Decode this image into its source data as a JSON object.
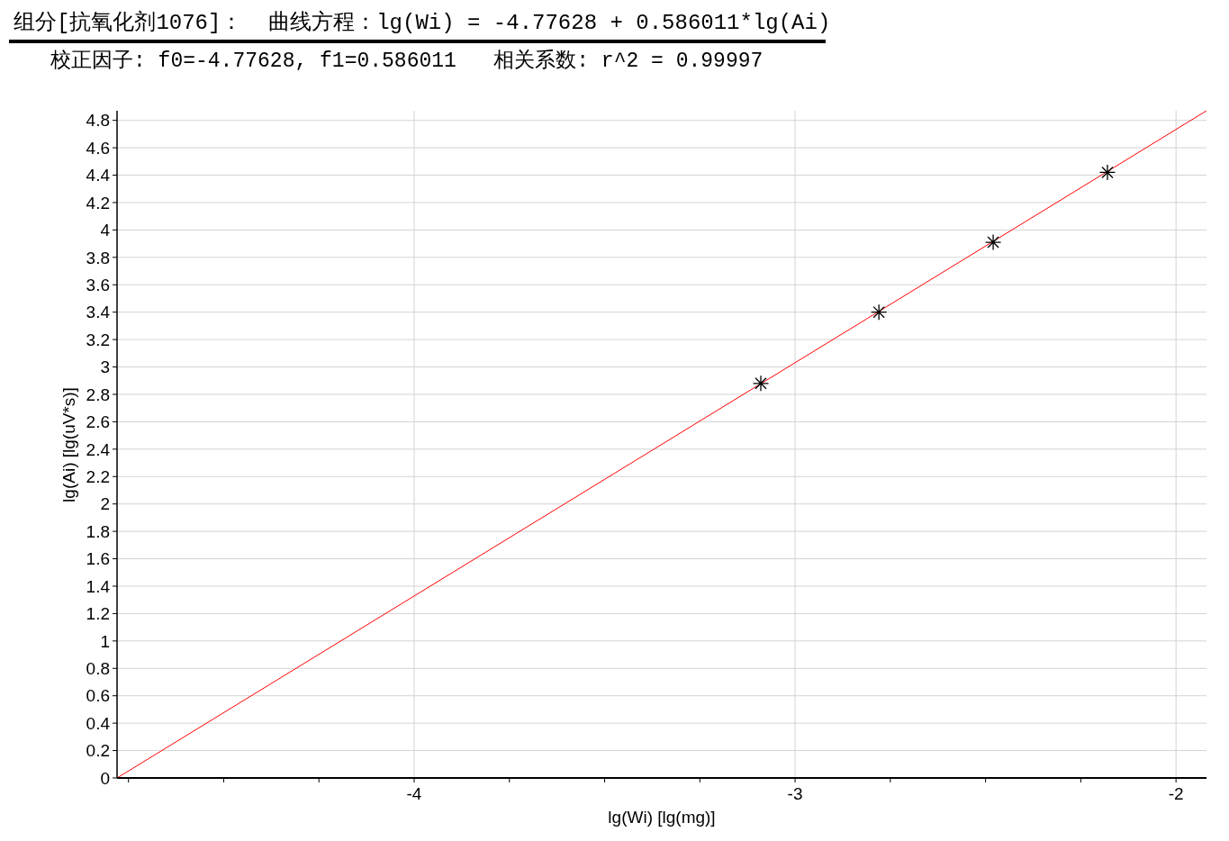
{
  "chart_data": {
    "type": "scatter",
    "title": "组分[抗氧化剂1076]：  曲线方程：lg(Wi) = -4.77628 + 0.586011*lg(Ai)",
    "subtitle": "校正因子: f0=-4.77628, f1=0.586011   相关系数: r^2 = 0.99997",
    "xlabel": "lg(Wi) [lg(mg)]",
    "ylabel": "lg(Ai) [lg(uV*s)]",
    "x": [
      -3.09,
      -2.78,
      -2.48,
      -2.18
    ],
    "series": [
      {
        "type": "line",
        "color": "#ff0000",
        "x": [
          -4.78,
          -1.92
        ],
        "values": [
          0,
          4.87
        ],
        "marker": "none",
        "line_style": "solid"
      },
      {
        "color": "#000000",
        "values": [
          2.88,
          3.4,
          3.91,
          4.42
        ]
      }
    ],
    "marker": "cross",
    "xlim": [
      -4.78,
      -1.92
    ],
    "ylim": [
      0,
      4.87
    ],
    "xticks": [
      {
        "value": -4.75,
        "label": null
      },
      {
        "value": -4.5,
        "label": null
      },
      {
        "value": -4.25,
        "label": null
      },
      -4,
      {
        "value": -3.75,
        "label": null
      },
      {
        "value": -3.5,
        "label": null
      },
      {
        "value": -3.25,
        "label": null
      },
      -3,
      {
        "value": -2.75,
        "label": null
      },
      {
        "value": -2.5,
        "label": null
      },
      {
        "value": -2.25,
        "label": null
      },
      -2
    ],
    "yticks": [
      0,
      0.2,
      0.4,
      0.6,
      0.8,
      1,
      1.2,
      1.4,
      1.6,
      1.8,
      2,
      2.2,
      2.4,
      2.6,
      2.8,
      3,
      3.2,
      3.4,
      3.6,
      3.8,
      4,
      4.2,
      4.4,
      4.6,
      4.8
    ],
    "grid": true
  }
}
